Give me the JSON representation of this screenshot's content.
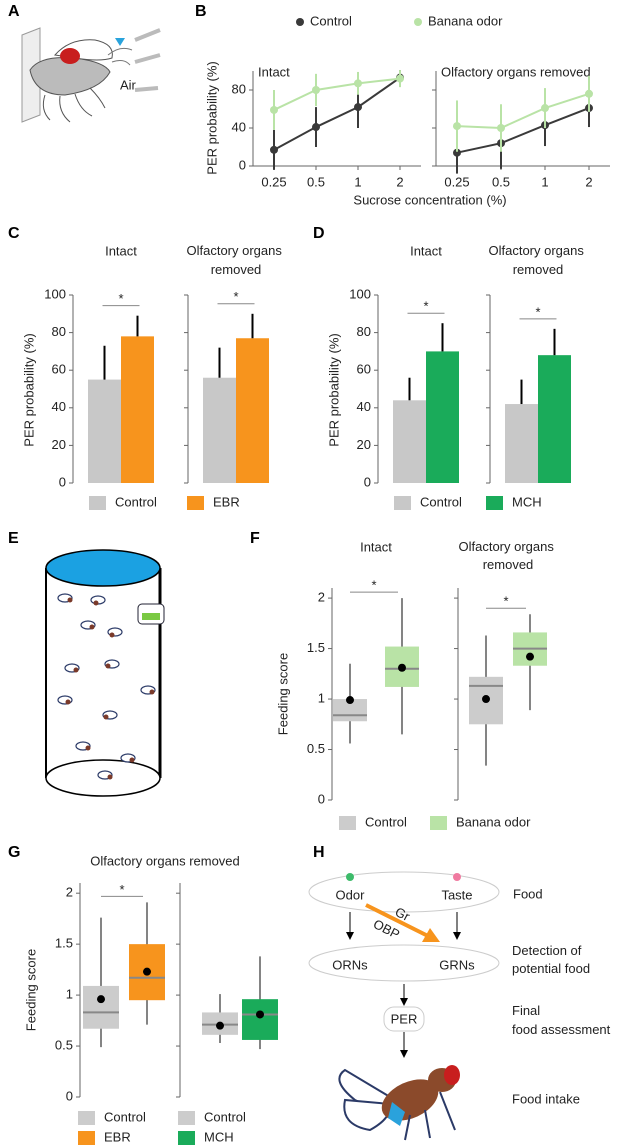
{
  "chart_data": [
    {
      "panel": "B",
      "type": "line",
      "ylabel": "PER probability (%)",
      "xlabel": "Sucrose concentration (%)",
      "categories": [
        "0.25",
        "0.5",
        "1",
        "2"
      ],
      "ylim": [
        0,
        100
      ],
      "yticks": [
        0,
        40,
        80
      ],
      "subplots": [
        "Intact",
        "Olfactory organs removed"
      ],
      "series": [
        {
          "name": "Control",
          "color": "#3a3a3a",
          "values": [
            [
              17,
              41,
              62,
              93
            ],
            [
              14,
              24,
              43,
              61
            ]
          ],
          "errors": [
            [
              21,
              21,
              22,
              8
            ],
            [
              22,
              27,
              22,
              20
            ]
          ]
        },
        {
          "name": "Banana odor",
          "color": "#b9e3a6",
          "values": [
            [
              59,
              80,
              87,
              92
            ],
            [
              42,
              40,
              61,
              76
            ]
          ],
          "errors": [
            [
              21,
              17,
              12,
              9
            ],
            [
              27,
              25,
              21,
              19
            ]
          ]
        }
      ]
    },
    {
      "panel": "C",
      "type": "bar",
      "ylabel": "PER probability (%)",
      "ylim": [
        0,
        100
      ],
      "yticks": [
        0,
        20,
        40,
        60,
        80,
        100
      ],
      "categories": [
        "Control",
        "EBR"
      ],
      "colors": [
        "#c8c8c8",
        "#f7941d"
      ],
      "subplots": [
        {
          "title": "Intact",
          "values": [
            55,
            78
          ],
          "errors": [
            18,
            11
          ],
          "annotation": "*"
        },
        {
          "title": "Olfactory organs removed",
          "values": [
            56,
            77
          ],
          "errors": [
            16,
            13
          ],
          "annotation": "*"
        }
      ]
    },
    {
      "panel": "D",
      "type": "bar",
      "ylabel": "PER probability (%)",
      "ylim": [
        0,
        100
      ],
      "yticks": [
        0,
        20,
        40,
        60,
        80,
        100
      ],
      "categories": [
        "Control",
        "MCH"
      ],
      "colors": [
        "#c8c8c8",
        "#1aab5a"
      ],
      "subplots": [
        {
          "title": "Intact",
          "values": [
            44,
            70
          ],
          "errors": [
            12,
            15
          ],
          "annotation": "*"
        },
        {
          "title": "Olfactory organs removed",
          "values": [
            42,
            68
          ],
          "errors": [
            13,
            14
          ],
          "annotation": "*"
        }
      ]
    },
    {
      "panel": "F",
      "type": "box",
      "ylabel": "Feeding score",
      "ylim": [
        0,
        2.1
      ],
      "yticks": [
        0,
        0.5,
        1,
        1.5,
        2
      ],
      "categories": [
        "Control",
        "Banana odor"
      ],
      "colors": [
        "#cccccc",
        "#b9e3a6"
      ],
      "subplots": [
        {
          "title": "Intact",
          "annotation": "*",
          "boxes": [
            {
              "whislo": 0.56,
              "q1": 0.78,
              "med": 0.84,
              "q3": 1.0,
              "whishi": 1.35,
              "mean": 0.99
            },
            {
              "whislo": 0.65,
              "q1": 1.12,
              "med": 1.3,
              "q3": 1.52,
              "whishi": 2.0,
              "mean": 1.31
            }
          ]
        },
        {
          "title": "Olfactory organs removed",
          "annotation": "*",
          "boxes": [
            {
              "whislo": 0.34,
              "q1": 0.75,
              "med": 1.13,
              "q3": 1.22,
              "whishi": 1.63,
              "mean": 1.0
            },
            {
              "whislo": 0.89,
              "q1": 1.33,
              "med": 1.5,
              "q3": 1.66,
              "whishi": 1.84,
              "mean": 1.42
            }
          ]
        }
      ]
    },
    {
      "panel": "G",
      "type": "box",
      "title": "Olfactory organs removed",
      "ylabel": "Feeding score",
      "ylim": [
        0,
        2.1
      ],
      "yticks": [
        0,
        0.5,
        1,
        1.5,
        2
      ],
      "subplots": [
        {
          "categories": [
            "Control",
            "EBR"
          ],
          "colors": [
            "#cccccc",
            "#f7941d"
          ],
          "annotation": "*",
          "boxes": [
            {
              "whislo": 0.49,
              "q1": 0.67,
              "med": 0.83,
              "q3": 1.09,
              "whishi": 1.76,
              "mean": 0.96
            },
            {
              "whislo": 0.71,
              "q1": 0.95,
              "med": 1.17,
              "q3": 1.5,
              "whishi": 1.91,
              "mean": 1.23
            }
          ]
        },
        {
          "categories": [
            "Control",
            "MCH"
          ],
          "colors": [
            "#cccccc",
            "#1aab5a"
          ],
          "boxes": [
            {
              "whislo": 0.53,
              "q1": 0.61,
              "med": 0.71,
              "q3": 0.83,
              "whishi": 1.01,
              "mean": 0.7
            },
            {
              "whislo": 0.47,
              "q1": 0.56,
              "med": 0.81,
              "q3": 0.96,
              "whishi": 1.38,
              "mean": 0.81
            }
          ]
        }
      ]
    }
  ],
  "diagrams": {
    "A": {
      "label": "A",
      "text": "Air"
    },
    "E": {
      "label": "E"
    },
    "H": {
      "label": "H",
      "odor": "Odor",
      "taste": "Taste",
      "food": "Food",
      "gr": "Gr",
      "obp": "OBP",
      "orns": "ORNs",
      "grns": "GRNs",
      "detection": "Detection of potential food",
      "per": "PER",
      "assessment": "Final food assessment",
      "intake": "Food intake"
    }
  }
}
